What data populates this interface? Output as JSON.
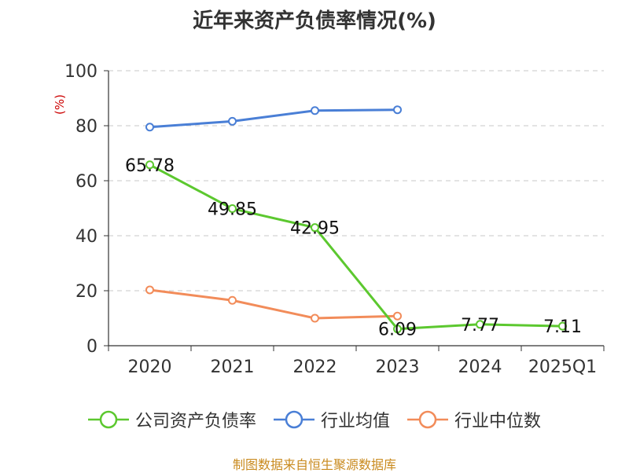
{
  "title": "近年来资产负债率情况(%)",
  "unit_label": "(%)",
  "source": "制图数据来自恒生聚源数据库",
  "chart_data": {
    "type": "line",
    "title": "近年来资产负债率情况(%)",
    "ylabel": "(%)",
    "ylim": [
      0,
      100
    ],
    "yticks": [
      0,
      20,
      40,
      60,
      80,
      100
    ],
    "grid": true,
    "legend_position": "bottom",
    "categories": [
      "2020",
      "2021",
      "2022",
      "2023",
      "2024",
      "2025Q1"
    ],
    "series": [
      {
        "name": "公司资产负债率",
        "color": "#5cc82f",
        "values": [
          65.78,
          49.85,
          42.95,
          6.09,
          7.77,
          7.11
        ],
        "labels": [
          "65.78",
          "49.85",
          "42.95",
          "6.09",
          "7.77",
          "7.11"
        ]
      },
      {
        "name": "行业均值",
        "color": "#4a7fd6",
        "values": [
          79.5,
          81.6,
          85.5,
          85.8,
          null,
          null
        ]
      },
      {
        "name": "行业中位数",
        "color": "#f28c5a",
        "values": [
          20.3,
          16.5,
          10.0,
          10.8,
          null,
          null
        ]
      }
    ]
  }
}
